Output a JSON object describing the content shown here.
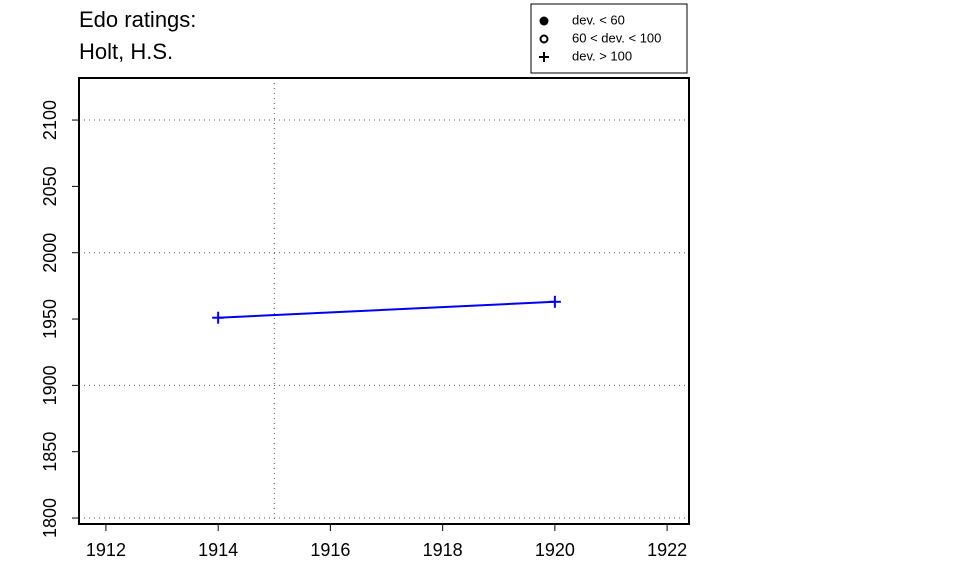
{
  "chart_data": {
    "type": "line",
    "title": [
      "Edo ratings:",
      "Holt, H.S."
    ],
    "x": [
      1914,
      1920
    ],
    "series": [
      {
        "color": "#0000ee",
        "values": [
          1951,
          1963
        ],
        "marker": "plus"
      }
    ],
    "xlim": [
      1911.52,
      1922.39
    ],
    "ylim": [
      1795.5,
      2131.7
    ],
    "xticks": [
      1912,
      1914,
      1916,
      1918,
      1920,
      1922
    ],
    "yticks": [
      1800,
      1850,
      1900,
      1950,
      2000,
      2050,
      2100
    ],
    "grid_x": [
      1915
    ],
    "grid_y": [
      1800,
      1900,
      2000,
      2100
    ],
    "legend": {
      "position": "top-right",
      "entries": [
        {
          "label": "dev. < 60",
          "marker": "filled-circle"
        },
        {
          "label": "60 < dev. < 100",
          "marker": "open-circle"
        },
        {
          "label": "dev. > 100",
          "marker": "plus"
        }
      ]
    }
  }
}
